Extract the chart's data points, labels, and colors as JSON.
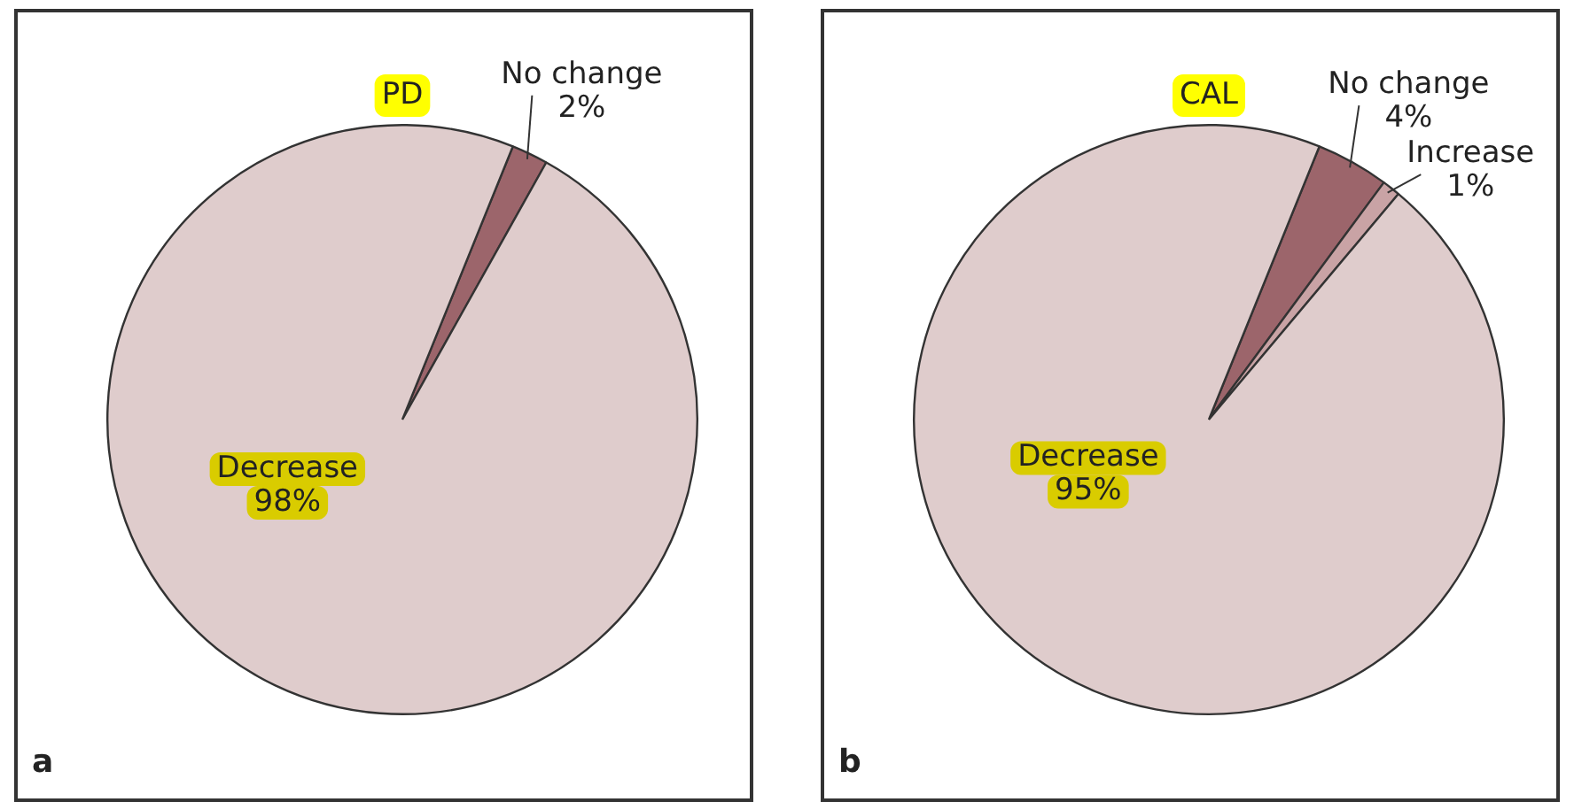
{
  "chart_data": [
    {
      "type": "pie",
      "title": "PD",
      "categories": [
        "No change",
        "Decrease"
      ],
      "values": [
        2,
        98
      ],
      "colors": [
        "#9c656b",
        "#dfcccc"
      ],
      "value_labels": [
        "2%",
        "98%"
      ],
      "annotations": [
        "a"
      ]
    },
    {
      "type": "pie",
      "title": "CAL",
      "categories": [
        "No change",
        "Increase",
        "Decrease"
      ],
      "values": [
        4,
        1,
        95
      ],
      "colors": [
        "#9c656b",
        "#c9a3a5",
        "#dfcccc"
      ],
      "value_labels": [
        "4%",
        "1%",
        "95%"
      ],
      "annotations": [
        "b"
      ]
    }
  ]
}
